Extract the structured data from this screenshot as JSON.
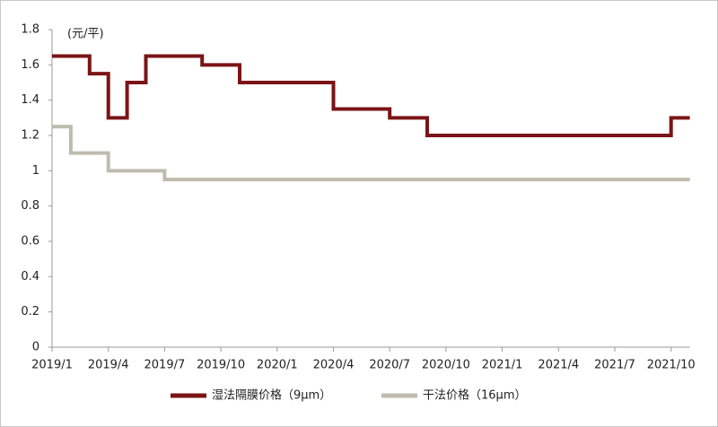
{
  "chart_data": {
    "type": "line",
    "step": "post",
    "y_label": "(元/平)",
    "categories": [
      "2019/1",
      null,
      null,
      "2019/4",
      null,
      null,
      "2019/7",
      null,
      null,
      "2019/10",
      null,
      null,
      "2020/1",
      null,
      null,
      "2020/4",
      null,
      null,
      "2020/7",
      null,
      null,
      "2020/10",
      null,
      null,
      "2021/1",
      null,
      null,
      "2021/4",
      null,
      null,
      "2021/7",
      null,
      null,
      "2021/10",
      null
    ],
    "series": [
      {
        "name": "湿法隔膜价格（9μm）",
        "color": "#7b1416",
        "values": [
          1.65,
          1.65,
          1.55,
          1.3,
          1.5,
          1.65,
          1.65,
          1.65,
          1.6,
          1.6,
          1.5,
          1.5,
          1.5,
          1.5,
          1.5,
          1.35,
          1.35,
          1.35,
          1.3,
          1.3,
          1.2,
          1.2,
          1.2,
          1.2,
          1.2,
          1.2,
          1.2,
          1.2,
          1.2,
          1.2,
          1.2,
          1.2,
          1.2,
          1.3,
          1.3
        ]
      },
      {
        "name": "干法价格（16μm）",
        "color": "#bfbcae",
        "values": [
          1.25,
          1.1,
          1.1,
          1.0,
          1.0,
          1.0,
          0.95,
          0.95,
          0.95,
          0.95,
          0.95,
          0.95,
          0.95,
          0.95,
          0.95,
          0.95,
          0.95,
          0.95,
          0.95,
          0.95,
          0.95,
          0.95,
          0.95,
          0.95,
          0.95,
          0.95,
          0.95,
          0.95,
          0.95,
          0.95,
          0.95,
          0.95,
          0.95,
          0.95,
          0.95
        ]
      }
    ],
    "ylim": [
      0,
      1.8
    ],
    "yticks": [
      0,
      0.2,
      0.4,
      0.6,
      0.8,
      1,
      1.2,
      1.4,
      1.6,
      1.8
    ],
    "grid": false,
    "legend": "bottom"
  }
}
